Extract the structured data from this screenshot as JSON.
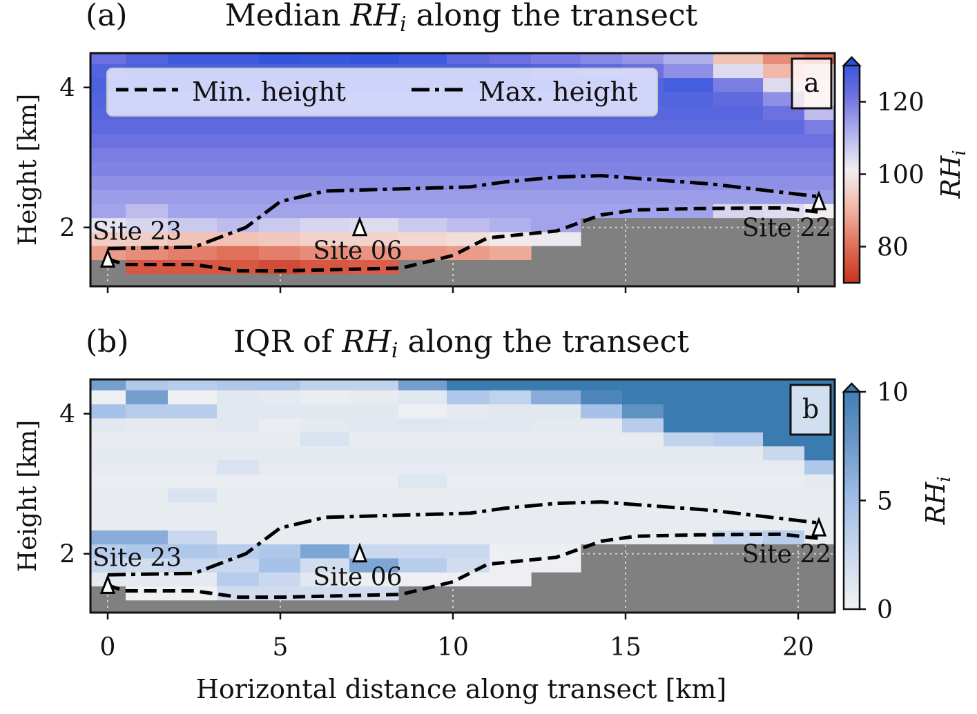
{
  "chart_data": [
    {
      "type": "heatmap",
      "panel_label": "(a)",
      "title": {
        "prefix": "Median ",
        "var": "RH",
        "sub": "i",
        "suffix": " along the transect"
      },
      "inset_label": "a",
      "xlabel": "Horizontal distance along transect [km]",
      "ylabel": "Height [km]",
      "xlim": [
        -0.5,
        21.06
      ],
      "ylim": [
        1.16,
        4.49
      ],
      "xticks": [
        0,
        5,
        10,
        15,
        20
      ],
      "yticks": [
        2,
        4
      ],
      "colorbar": {
        "label_var": "RH",
        "label_sub": "i",
        "range": [
          70,
          130
        ],
        "ticks": [
          80,
          100,
          120
        ],
        "extend": "max",
        "stops": [
          [
            70,
            "#c8321e"
          ],
          [
            80,
            "#e0705a"
          ],
          [
            90,
            "#f0b8a8"
          ],
          [
            100,
            "#f2eef0"
          ],
          [
            110,
            "#b0b0ec"
          ],
          [
            120,
            "#6c70e0"
          ],
          [
            130,
            "#2a52dc"
          ]
        ]
      },
      "x_edges": [
        -0.5,
        0.52,
        1.74,
        3.16,
        4.38,
        5.58,
        7.0,
        8.42,
        9.82,
        11.06,
        12.26,
        13.7,
        14.9,
        16.1,
        17.54,
        18.98,
        20.18,
        21.14
      ],
      "y_edges_start": 1.34,
      "y_step": 0.2,
      "values": [
        [
          null,
          76,
          76,
          76,
          74,
          76,
          77,
          null,
          null,
          null,
          null,
          null,
          null,
          null,
          null,
          null,
          null
        ],
        [
          86,
          84,
          82,
          80,
          82,
          84,
          85,
          85,
          86,
          88,
          null,
          null,
          null,
          null,
          null,
          null,
          null
        ],
        [
          94,
          94,
          92,
          92,
          93,
          95,
          95,
          96,
          97,
          99,
          101,
          null,
          null,
          null,
          null,
          null,
          null
        ],
        [
          102,
          104,
          106,
          108,
          106,
          104,
          103,
          106,
          108,
          110,
          112,
          null,
          null,
          null,
          null,
          null,
          null
        ],
        [
          112,
          108,
          112,
          112,
          112,
          112,
          112,
          112,
          112,
          112,
          112,
          112,
          112,
          112,
          104,
          103,
          100
        ],
        [
          113,
          113,
          113,
          113,
          113,
          113,
          113,
          113,
          113,
          113,
          113,
          113,
          113,
          113,
          113,
          113,
          113
        ],
        [
          115,
          115,
          115,
          115,
          115,
          115,
          115,
          115,
          115,
          115,
          115,
          115,
          115,
          115,
          115,
          115,
          115
        ],
        [
          117,
          117,
          117,
          117,
          117,
          117,
          117,
          117,
          117,
          117,
          117,
          117,
          117,
          117,
          117,
          117,
          117
        ],
        [
          118,
          118,
          118,
          118,
          118,
          118,
          118,
          118,
          118,
          118,
          118,
          118,
          118,
          118,
          118,
          118,
          118
        ],
        [
          120,
          120,
          120,
          120,
          120,
          120,
          120,
          120,
          120,
          120,
          120,
          120,
          120,
          120,
          120,
          120,
          120
        ],
        [
          122,
          122,
          122,
          122,
          122,
          122,
          122,
          122,
          122,
          122,
          122,
          122,
          122,
          122,
          122,
          122,
          118
        ],
        [
          123,
          123,
          123,
          123,
          123,
          123,
          123,
          123,
          123,
          123,
          123,
          123,
          123,
          123,
          123,
          120,
          108
        ],
        [
          124,
          124,
          124,
          124,
          124,
          124,
          124,
          124,
          124,
          124,
          124,
          124,
          124,
          124,
          122,
          115,
          100
        ],
        [
          125,
          125,
          125,
          125,
          125,
          125,
          125,
          125,
          125,
          125,
          125,
          125,
          124,
          126,
          118,
          103,
          100
        ],
        [
          124,
          125,
          125,
          125,
          125,
          125,
          125,
          125,
          125,
          125,
          124,
          122,
          120,
          115,
          103,
          90,
          98
        ],
        [
          120,
          124,
          127,
          127,
          129,
          128,
          129,
          127,
          122,
          120,
          118,
          116,
          114,
          110,
          92,
          84,
          80
        ]
      ],
      "lines": [
        {
          "name": "Min. height",
          "style": "dashed",
          "points": [
            [
              0,
              1.55
            ],
            [
              0.5,
              1.47
            ],
            [
              2.5,
              1.47
            ],
            [
              3.8,
              1.38
            ],
            [
              5,
              1.38
            ],
            [
              8.5,
              1.42
            ],
            [
              10,
              1.6
            ],
            [
              11,
              1.85
            ],
            [
              13,
              1.95
            ],
            [
              14.3,
              2.18
            ],
            [
              15.3,
              2.25
            ],
            [
              17,
              2.27
            ],
            [
              19.5,
              2.28
            ],
            [
              20.6,
              2.22
            ]
          ]
        },
        {
          "name": "Max. height",
          "style": "dashdot",
          "points": [
            [
              0,
              1.7
            ],
            [
              2.5,
              1.72
            ],
            [
              4,
              2.0
            ],
            [
              5,
              2.37
            ],
            [
              6.3,
              2.52
            ],
            [
              10.5,
              2.58
            ],
            [
              11.5,
              2.65
            ],
            [
              13,
              2.72
            ],
            [
              14.3,
              2.74
            ],
            [
              17.5,
              2.62
            ],
            [
              20.6,
              2.44
            ]
          ]
        }
      ],
      "sites": [
        {
          "label": "Site 23",
          "x": 0,
          "y": 1.55
        },
        {
          "label": "Site 06",
          "x": 7.3,
          "y": 2.0
        },
        {
          "label": "Site 22",
          "x": 20.6,
          "y": 2.37
        }
      ],
      "legend": {
        "placement": "top-left",
        "entries": [
          "Min. height",
          "Max. height"
        ]
      }
    },
    {
      "type": "heatmap",
      "panel_label": "(b)",
      "title": {
        "prefix": "IQR of ",
        "var": "RH",
        "sub": "i",
        "suffix": " along the transect"
      },
      "inset_label": "b",
      "xlabel": "Horizontal distance along transect [km]",
      "ylabel": "Height [km]",
      "xlim": [
        -0.5,
        21.06
      ],
      "ylim": [
        1.16,
        4.49
      ],
      "xticks": [
        0,
        5,
        10,
        15,
        20
      ],
      "xticklabels": [
        "0",
        "5",
        "10",
        "15",
        "20"
      ],
      "yticks": [
        2,
        4
      ],
      "colorbar": {
        "label_var": "RH",
        "label_sub": "i",
        "range": [
          0,
          10
        ],
        "ticks": [
          0,
          5,
          10
        ],
        "extend": "max",
        "stops": [
          [
            0,
            "#f2f2f2"
          ],
          [
            2.5,
            "#c9d8ee"
          ],
          [
            5,
            "#9dbde6"
          ],
          [
            7.5,
            "#6a96c8"
          ],
          [
            10,
            "#3a7bb0"
          ]
        ]
      },
      "x_edges": [
        -0.5,
        0.52,
        1.74,
        3.16,
        4.38,
        5.58,
        7.0,
        8.42,
        9.82,
        11.06,
        12.26,
        13.7,
        14.9,
        16.1,
        17.54,
        18.98,
        20.18,
        21.14
      ],
      "y_edges_start": 1.34,
      "y_step": 0.2,
      "values": [
        [
          null,
          0.2,
          0.2,
          2,
          2,
          2,
          2,
          null,
          null,
          null,
          null,
          null,
          null,
          null,
          null,
          null,
          null
        ],
        [
          0.8,
          0.8,
          0.8,
          3.5,
          2.5,
          1,
          0.3,
          0.3,
          0.3,
          0.3,
          null,
          null,
          null,
          null,
          null,
          null,
          null
        ],
        [
          2.5,
          2,
          2.5,
          2.5,
          4.5,
          2,
          6.5,
          3.5,
          2,
          0.3,
          0.3,
          null,
          null,
          null,
          null,
          null,
          null
        ],
        [
          3.5,
          4,
          4,
          3.5,
          4,
          6.5,
          2.5,
          2.5,
          2.5,
          0.3,
          0.3,
          null,
          null,
          null,
          null,
          null,
          null
        ],
        [
          6,
          6,
          2.5,
          0.6,
          0.6,
          0.6,
          0.6,
          0.6,
          0.6,
          0.6,
          0.6,
          0.6,
          0.6,
          0.6,
          2.5,
          3.5,
          0.6
        ],
        [
          0.6,
          0.6,
          0.6,
          0.6,
          0.6,
          0.6,
          0.6,
          0.6,
          0.6,
          0.6,
          0.6,
          0.6,
          0.6,
          0.6,
          0.6,
          0.6,
          0.6
        ],
        [
          0.6,
          0.6,
          0.6,
          0.6,
          0.6,
          0.6,
          0.6,
          0.6,
          0.6,
          0.6,
          0.6,
          0.6,
          0.6,
          0.6,
          0.6,
          0.6,
          0.6
        ],
        [
          0.6,
          0.6,
          1.5,
          0.6,
          0.6,
          0.6,
          0.6,
          0.6,
          0.6,
          0.6,
          0.6,
          0.6,
          0.6,
          0.6,
          0.6,
          0.6,
          0.6
        ],
        [
          0.5,
          0.5,
          0.5,
          0.5,
          0.5,
          0.5,
          0.5,
          1.2,
          0.5,
          0.5,
          0.5,
          0.5,
          0.5,
          0.5,
          0.5,
          0.5,
          0.8
        ],
        [
          0.7,
          0.7,
          0.7,
          1.5,
          0.7,
          0.7,
          0.7,
          0.7,
          0.7,
          0.7,
          0.7,
          0.7,
          0.7,
          0.7,
          0.7,
          0.7,
          4
        ],
        [
          0.8,
          0.8,
          0.8,
          0.8,
          0.8,
          0.8,
          0.8,
          0.8,
          0.8,
          0.8,
          0.8,
          0.8,
          0.8,
          0.8,
          0.8,
          2.5,
          10
        ],
        [
          0.6,
          0.6,
          0.6,
          0.6,
          0.6,
          1.5,
          0.6,
          0.6,
          0.6,
          0.6,
          0.6,
          0.6,
          0.6,
          3,
          3.5,
          10,
          10
        ],
        [
          1,
          0.8,
          0.8,
          1,
          0.5,
          0.8,
          1,
          1.2,
          1,
          1,
          0.8,
          0.8,
          3.5,
          10,
          10,
          10,
          10
        ],
        [
          4.5,
          3.5,
          3.5,
          1,
          1,
          1,
          1,
          0.3,
          0.8,
          1,
          1,
          4.5,
          8,
          10,
          10,
          10,
          10
        ],
        [
          0.3,
          7,
          0.3,
          1,
          0.8,
          0.5,
          0.6,
          1,
          4,
          3,
          6,
          9,
          10,
          10,
          10,
          10,
          10
        ],
        [
          7,
          4,
          3.5,
          4,
          4,
          3,
          3,
          7,
          10,
          10,
          10,
          10,
          10,
          10,
          10,
          10,
          10
        ]
      ],
      "lines": [
        {
          "name": "Min. height",
          "style": "dashed",
          "points": [
            [
              0,
              1.55
            ],
            [
              0.5,
              1.47
            ],
            [
              2.5,
              1.47
            ],
            [
              3.8,
              1.38
            ],
            [
              5,
              1.38
            ],
            [
              8.5,
              1.42
            ],
            [
              10,
              1.6
            ],
            [
              11,
              1.85
            ],
            [
              13,
              1.95
            ],
            [
              14.3,
              2.18
            ],
            [
              15.3,
              2.25
            ],
            [
              17,
              2.27
            ],
            [
              19.5,
              2.28
            ],
            [
              20.6,
              2.22
            ]
          ]
        },
        {
          "name": "Max. height",
          "style": "dashdot",
          "points": [
            [
              0,
              1.7
            ],
            [
              2.5,
              1.72
            ],
            [
              4,
              2.0
            ],
            [
              5,
              2.37
            ],
            [
              6.3,
              2.52
            ],
            [
              10.5,
              2.58
            ],
            [
              11.5,
              2.65
            ],
            [
              13,
              2.72
            ],
            [
              14.3,
              2.74
            ],
            [
              17.5,
              2.62
            ],
            [
              20.6,
              2.44
            ]
          ]
        }
      ],
      "sites": [
        {
          "label": "Site 23",
          "x": 0,
          "y": 1.55
        },
        {
          "label": "Site 06",
          "x": 7.3,
          "y": 2.0
        },
        {
          "label": "Site 22",
          "x": 20.6,
          "y": 2.37
        }
      ]
    }
  ],
  "shared": {
    "xlabel": "Horizontal distance along transect [km]",
    "ylabel": "Height [km]"
  }
}
